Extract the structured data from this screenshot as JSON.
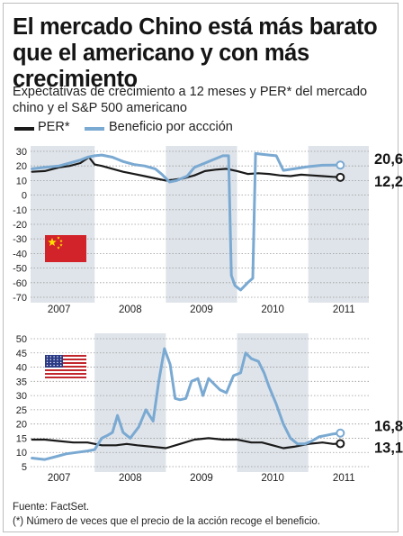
{
  "headline": "El mercado Chino está más barato que el americano y con más crecimiento",
  "subtitle": "Expectativas de crecimiento a 12 meses y PER* del mercado chino y el S&P 500 americano",
  "legend": {
    "per_label": "PER*",
    "eps_label": "Beneficio por accción"
  },
  "colors": {
    "per": "#1a1a1a",
    "eps": "#7aa9d2",
    "band": "#dfe4ea",
    "grid": "#9a9a9a"
  },
  "source": "Fuente: FactSet.",
  "footnote": "(*) Número de veces que el precio de la acción recoge el beneficio.",
  "chart_data": [
    {
      "type": "line",
      "panel": "china",
      "icon": "china-flag-icon",
      "xlim": [
        2006.6,
        2011.35
      ],
      "ylim": [
        -70,
        30
      ],
      "yticks": [
        30,
        20,
        10,
        0,
        -10,
        -20,
        -30,
        -40,
        -50,
        -60,
        -70
      ],
      "xtick_labels": [
        "2007",
        "2008",
        "2009",
        "2010",
        "2011"
      ],
      "xtick_positions": [
        2007.0,
        2008.0,
        2009.0,
        2010.0,
        2011.0
      ],
      "shaded_years": [
        2007,
        2009,
        2011
      ],
      "grid": "horizontal",
      "series": [
        {
          "name": "PER*",
          "end_label": "12,2",
          "x": [
            2006.62,
            2006.8,
            2007.0,
            2007.15,
            2007.3,
            2007.42,
            2007.5,
            2007.6,
            2007.75,
            2007.9,
            2008.05,
            2008.2,
            2008.35,
            2008.5,
            2008.6,
            2008.75,
            2008.9,
            2009.05,
            2009.2,
            2009.35,
            2009.5,
            2009.65,
            2009.8,
            2009.95,
            2010.1,
            2010.25,
            2010.4,
            2010.55,
            2010.7,
            2010.85,
            2010.95
          ],
          "values": [
            16,
            16.5,
            19,
            20,
            22,
            26,
            21,
            20,
            18,
            16,
            14.5,
            13,
            11.5,
            10,
            10.5,
            11.5,
            13.5,
            16.5,
            17.5,
            18,
            16.5,
            14.5,
            15,
            14.5,
            13.5,
            13,
            14,
            13.5,
            13,
            12.5,
            12.2
          ]
        },
        {
          "name": "Beneficio por accción",
          "end_label": "20,6",
          "x": [
            2006.62,
            2006.8,
            2007.0,
            2007.15,
            2007.3,
            2007.4,
            2007.5,
            2007.6,
            2007.75,
            2007.9,
            2008.05,
            2008.2,
            2008.35,
            2008.45,
            2008.55,
            2008.65,
            2008.8,
            2008.9,
            2009.05,
            2009.2,
            2009.3,
            2009.38,
            2009.42,
            2009.47,
            2009.55,
            2009.65,
            2009.72,
            2009.76,
            2009.85,
            2009.95,
            2010.05,
            2010.15,
            2010.3,
            2010.5,
            2010.7,
            2010.85,
            2010.95
          ],
          "values": [
            18,
            19,
            20,
            22,
            24,
            26,
            27,
            27.5,
            26,
            23,
            21,
            20,
            18,
            14,
            9,
            10,
            13,
            19,
            22,
            25,
            27,
            27,
            -55,
            -62,
            -65,
            -60,
            -57,
            28.5,
            28,
            27.5,
            27,
            17,
            18,
            19.5,
            20.5,
            20.6,
            20.6
          ]
        }
      ]
    },
    {
      "type": "line",
      "panel": "usa",
      "icon": "usa-flag-icon",
      "xlim": [
        2006.6,
        2011.35
      ],
      "ylim": [
        5,
        50
      ],
      "yticks": [
        50,
        45,
        40,
        35,
        30,
        25,
        20,
        15,
        10,
        5
      ],
      "xtick_labels": [
        "2007",
        "2008",
        "2009",
        "2010",
        "2011"
      ],
      "xtick_positions": [
        2007.0,
        2008.0,
        2009.0,
        2010.0,
        2011.0
      ],
      "shaded_years": [
        2008,
        2010
      ],
      "grid": "horizontal",
      "series": [
        {
          "name": "PER*",
          "end_label": "13,1",
          "x": [
            2006.62,
            2006.8,
            2007.0,
            2007.2,
            2007.4,
            2007.6,
            2007.8,
            2007.95,
            2008.1,
            2008.3,
            2008.5,
            2008.7,
            2008.9,
            2009.1,
            2009.3,
            2009.5,
            2009.7,
            2009.85,
            2010.0,
            2010.15,
            2010.3,
            2010.5,
            2010.7,
            2010.85,
            2010.95
          ],
          "values": [
            14.5,
            14.5,
            14,
            13.5,
            13.5,
            12.5,
            12.5,
            13,
            12.5,
            12,
            11.5,
            13,
            14.5,
            15,
            14.5,
            14.5,
            13.5,
            13.5,
            12.5,
            11.5,
            12,
            13,
            13.5,
            13,
            13.1
          ]
        },
        {
          "name": "Beneficio por accción",
          "end_label": "16,8",
          "x": [
            2006.62,
            2006.8,
            2006.95,
            2007.1,
            2007.25,
            2007.4,
            2007.5,
            2007.6,
            2007.68,
            2007.75,
            2007.82,
            2007.9,
            2008.0,
            2008.12,
            2008.22,
            2008.32,
            2008.4,
            2008.48,
            2008.56,
            2008.63,
            2008.7,
            2008.78,
            2008.86,
            2008.95,
            2009.02,
            2009.1,
            2009.18,
            2009.26,
            2009.35,
            2009.45,
            2009.55,
            2009.62,
            2009.7,
            2009.8,
            2009.88,
            2009.95,
            2010.05,
            2010.15,
            2010.25,
            2010.35,
            2010.45,
            2010.55,
            2010.65,
            2010.75,
            2010.85,
            2010.95
          ],
          "values": [
            8,
            7.5,
            8.5,
            9.5,
            10,
            10.5,
            11,
            15,
            16,
            17,
            23,
            17,
            15,
            19,
            25,
            21,
            35,
            46.5,
            41,
            29,
            28.5,
            29,
            35,
            36,
            30,
            36,
            34,
            32,
            31,
            37,
            38,
            45,
            43,
            42,
            38,
            33,
            27,
            20,
            15,
            13,
            13,
            14,
            15.5,
            16,
            16.5,
            16.8
          ]
        }
      ]
    }
  ]
}
